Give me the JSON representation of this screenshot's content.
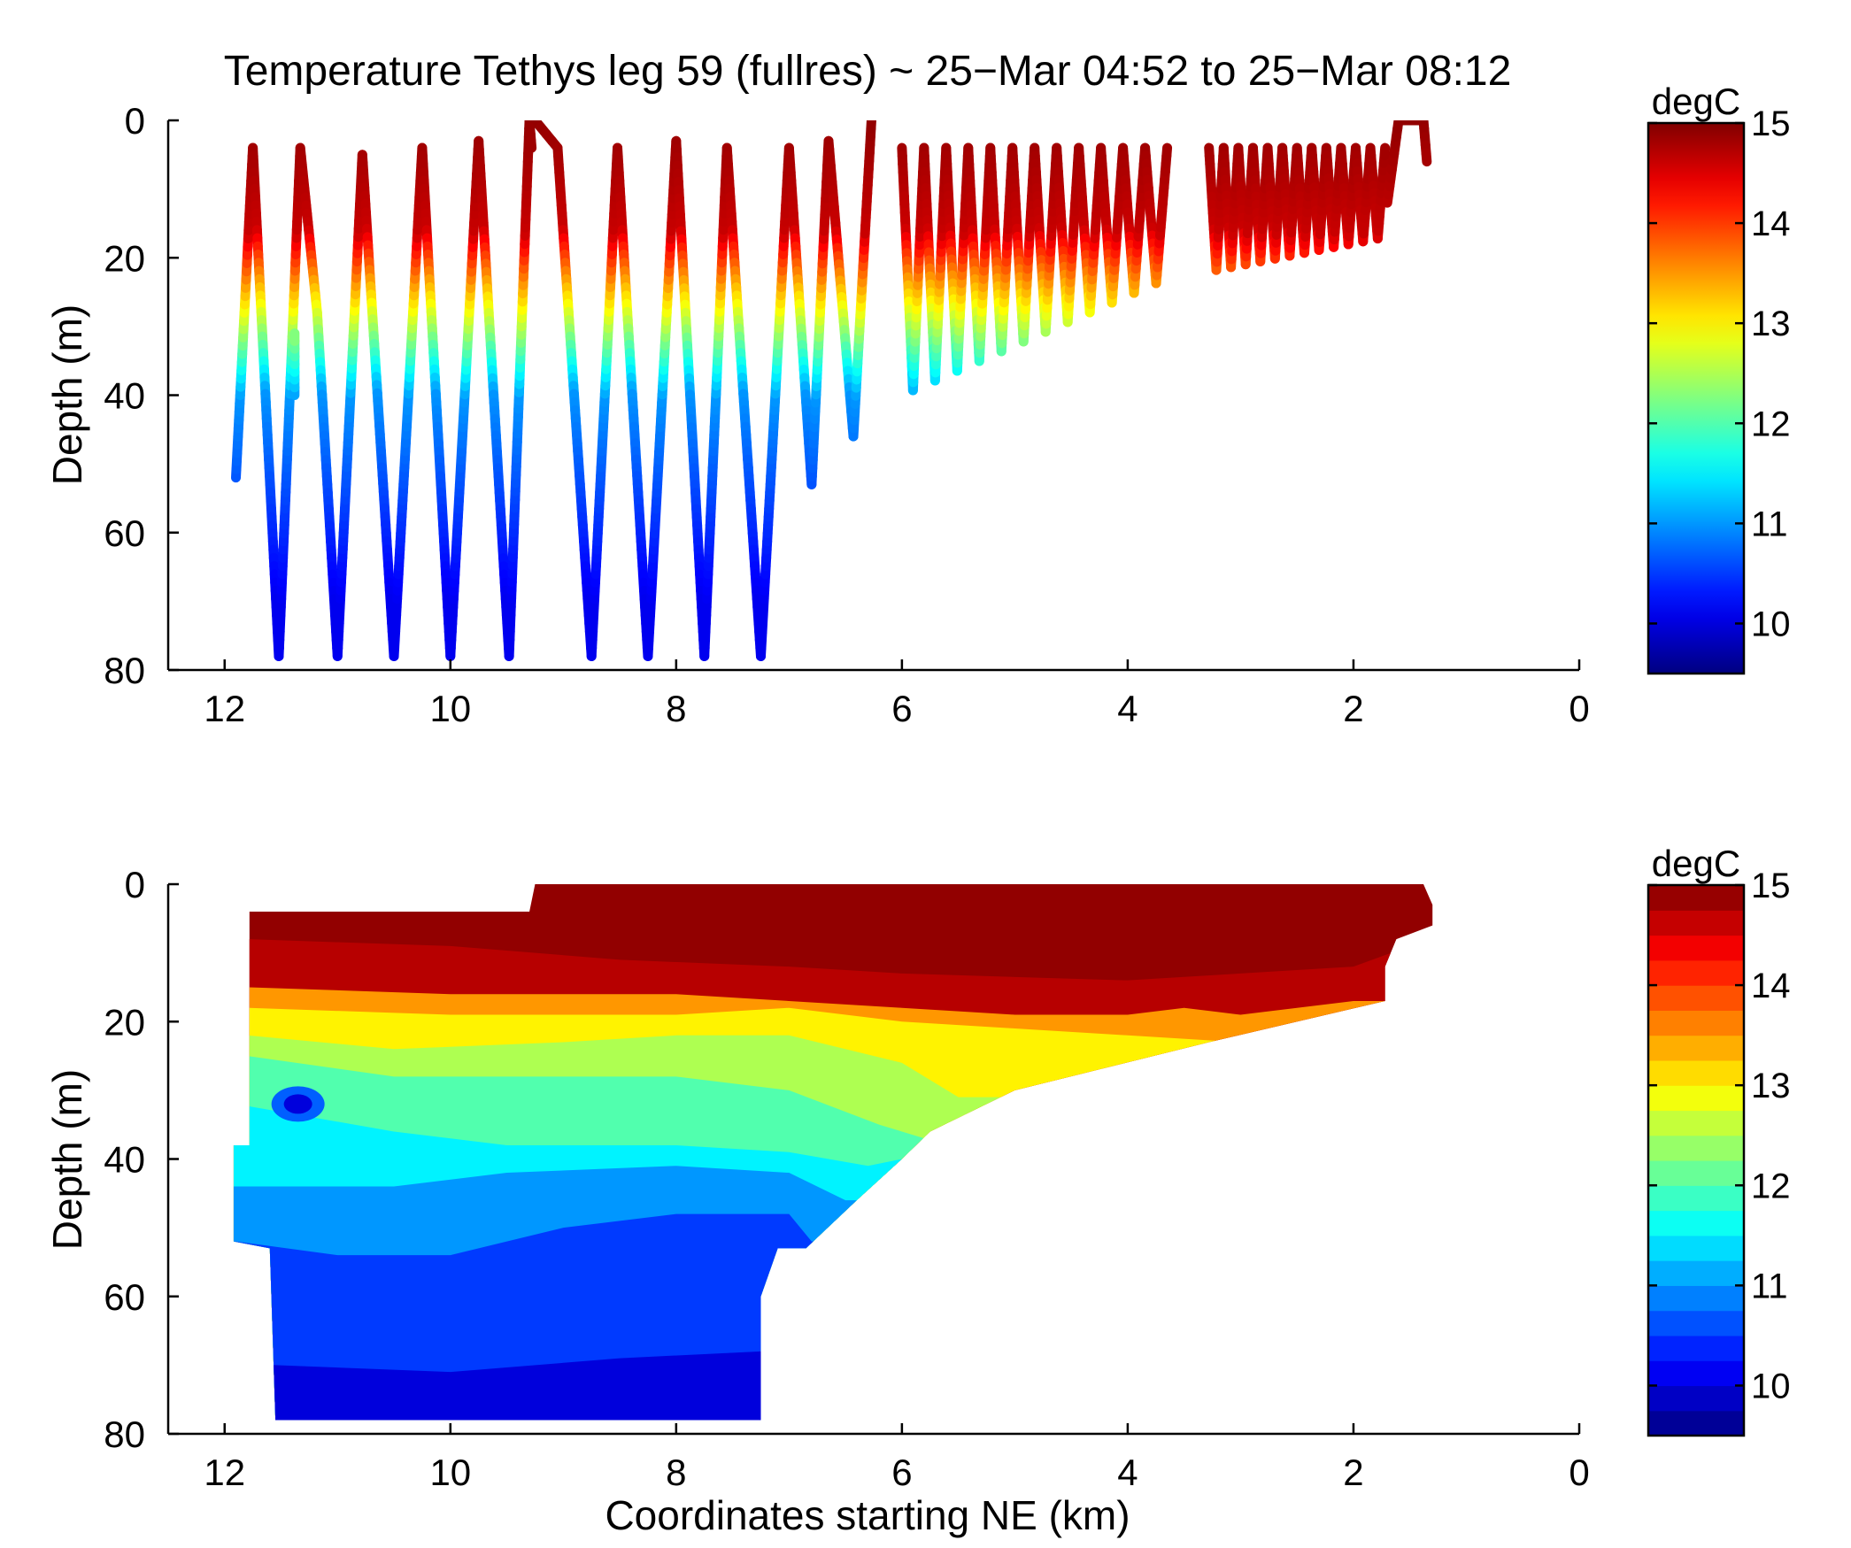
{
  "figure": {
    "title": "Temperature Tethys leg 59 (fullres) ~ 25−Mar 04:52 to 25−Mar 08:12"
  },
  "chart_data": [
    {
      "type": "scatter",
      "xlabel": "",
      "ylabel": "Depth (m)",
      "xlim": [
        12.5,
        0
      ],
      "ylim": [
        0,
        80
      ],
      "x_reversed": true,
      "y_reversed": true,
      "xticks": [
        "12",
        "10",
        "8",
        "6",
        "4",
        "2",
        "0"
      ],
      "yticks": [
        "0",
        "20",
        "40",
        "60",
        "80"
      ],
      "colorbar": {
        "unit": "degC",
        "clim": [
          9.5,
          15
        ],
        "ticks": [
          "15",
          "14",
          "13",
          "12",
          "11",
          "10"
        ],
        "colormap": "jet"
      },
      "vertices": [
        [
          11.9,
          52
        ],
        [
          11.75,
          4
        ],
        [
          11.52,
          78
        ],
        [
          11.33,
          4
        ],
        [
          11.18,
          28
        ],
        [
          11.0,
          78
        ],
        [
          10.78,
          5
        ],
        [
          10.5,
          78
        ],
        [
          10.25,
          4
        ],
        [
          10.0,
          78
        ],
        [
          9.75,
          3
        ],
        [
          9.48,
          78
        ],
        [
          9.3,
          0
        ],
        [
          9.25,
          0
        ],
        [
          9.05,
          4
        ],
        [
          8.75,
          78
        ],
        [
          8.52,
          4
        ],
        [
          8.25,
          78
        ],
        [
          8.0,
          3
        ],
        [
          7.75,
          78
        ],
        [
          7.55,
          4
        ],
        [
          7.25,
          78
        ],
        [
          7.0,
          4
        ],
        [
          6.8,
          53
        ],
        [
          6.65,
          3
        ],
        [
          6.43,
          46
        ],
        [
          6.27,
          0
        ]
      ],
      "separate_segments": [
        {
          "points": [
            [
              11.38,
              40
            ],
            [
              11.38,
              31
            ]
          ]
        },
        {
          "points": [
            [
              9.3,
              0
            ],
            [
              9.28,
              4
            ]
          ]
        }
      ],
      "profile_model": {
        "surface_temp": 14.6,
        "thermocline_top_m": 16,
        "thermocline_bottom_m": 40,
        "deep_temp": 10.1
      },
      "shallow_section": {
        "near": {
          "x_start": 6.0,
          "x_end": 3.65,
          "crests_m": 4,
          "troughs_from_m": 40,
          "troughs_to_m": 23
        },
        "far": {
          "x_start": 3.28,
          "x_end": 1.72,
          "crests_m": 4,
          "troughs_from_m": 22,
          "troughs_to_m": 17
        },
        "tail": [
          [
            1.7,
            12
          ],
          [
            1.6,
            0
          ],
          [
            1.38,
            0
          ],
          [
            1.35,
            6
          ]
        ]
      }
    },
    {
      "type": "heatmap",
      "xlabel": "Coordinates starting NE (km)",
      "ylabel": "Depth (m)",
      "xlim": [
        12.5,
        0
      ],
      "ylim": [
        0,
        80
      ],
      "x_reversed": true,
      "y_reversed": true,
      "xticks": [
        "12",
        "10",
        "8",
        "6",
        "4",
        "2",
        "0"
      ],
      "yticks": [
        "0",
        "20",
        "40",
        "60",
        "80"
      ],
      "colorbar": {
        "unit": "degC",
        "clim": [
          9.5,
          15
        ],
        "ticks": [
          "15",
          "14",
          "13",
          "12",
          "11",
          "10"
        ],
        "levels": 22,
        "colormap": "jet"
      },
      "data_extent_outline": [
        [
          11.78,
          4
        ],
        [
          9.3,
          4
        ],
        [
          9.25,
          0
        ],
        [
          1.38,
          0
        ],
        [
          1.3,
          3
        ],
        [
          1.3,
          6
        ],
        [
          1.62,
          8
        ],
        [
          1.72,
          12
        ],
        [
          1.72,
          17
        ],
        [
          3.28,
          23
        ],
        [
          5.0,
          30
        ],
        [
          5.75,
          36
        ],
        [
          6.0,
          40
        ],
        [
          6.4,
          46
        ],
        [
          6.85,
          53
        ],
        [
          7.1,
          53
        ],
        [
          7.25,
          60
        ],
        [
          7.25,
          78
        ],
        [
          11.55,
          78
        ],
        [
          11.6,
          53
        ],
        [
          11.92,
          52
        ],
        [
          11.92,
          38
        ],
        [
          11.78,
          38
        ]
      ],
      "isotherms": [
        {
          "temp": 14.7,
          "depth_profile": [
            [
              11.8,
              8
            ],
            [
              10.0,
              9
            ],
            [
              8.5,
              11
            ],
            [
              7.0,
              12
            ],
            [
              6.0,
              13
            ],
            [
              4.0,
              14
            ],
            [
              2.0,
              12
            ],
            [
              1.5,
              9
            ]
          ]
        },
        {
          "temp": 13.5,
          "depth_profile": [
            [
              11.8,
              15
            ],
            [
              10.0,
              16
            ],
            [
              8.0,
              16
            ],
            [
              6.0,
              18
            ],
            [
              5.0,
              19
            ],
            [
              4.0,
              19
            ],
            [
              3.5,
              18
            ],
            [
              3.0,
              19
            ],
            [
              2.0,
              17
            ]
          ]
        },
        {
          "temp": 13.0,
          "depth_profile": [
            [
              11.8,
              18
            ],
            [
              10.0,
              19
            ],
            [
              8.0,
              19
            ],
            [
              7.0,
              18
            ],
            [
              6.0,
              20
            ],
            [
              5.0,
              21
            ],
            [
              4.0,
              22
            ],
            [
              3.0,
              23
            ]
          ]
        },
        {
          "temp": 12.5,
          "depth_profile": [
            [
              11.8,
              22
            ],
            [
              10.5,
              24
            ],
            [
              9.0,
              23
            ],
            [
              8.0,
              22
            ],
            [
              7.0,
              22
            ],
            [
              6.0,
              26
            ],
            [
              5.5,
              31
            ],
            [
              5.0,
              31
            ]
          ]
        },
        {
          "temp": 12.0,
          "depth_profile": [
            [
              11.8,
              25
            ],
            [
              10.5,
              28
            ],
            [
              9.0,
              28
            ],
            [
              8.0,
              28
            ],
            [
              7.0,
              30
            ],
            [
              6.2,
              35
            ],
            [
              5.8,
              37
            ]
          ]
        },
        {
          "temp": 11.5,
          "depth_profile": [
            [
              11.9,
              32
            ],
            [
              10.5,
              36
            ],
            [
              9.5,
              38
            ],
            [
              8.0,
              38
            ],
            [
              7.0,
              39
            ],
            [
              6.3,
              41
            ],
            [
              6.0,
              40
            ]
          ]
        },
        {
          "temp": 11.0,
          "depth_profile": [
            [
              11.9,
              44
            ],
            [
              10.5,
              44
            ],
            [
              9.5,
              42
            ],
            [
              8.0,
              41
            ],
            [
              7.0,
              42
            ],
            [
              6.5,
              46
            ]
          ]
        },
        {
          "temp": 10.5,
          "depth_profile": [
            [
              11.9,
              52
            ],
            [
              11.0,
              54
            ],
            [
              10.0,
              54
            ],
            [
              9.0,
              50
            ],
            [
              8.0,
              48
            ],
            [
              7.0,
              48
            ],
            [
              6.8,
              52
            ]
          ]
        },
        {
          "temp": 10.0,
          "depth_profile": [
            [
              11.55,
              70
            ],
            [
              10.0,
              71
            ],
            [
              8.5,
              69
            ],
            [
              7.25,
              68
            ]
          ]
        }
      ],
      "anomalies": [
        {
          "x": 11.35,
          "depth": 32,
          "temp": 10.0,
          "label": ""
        }
      ]
    }
  ]
}
